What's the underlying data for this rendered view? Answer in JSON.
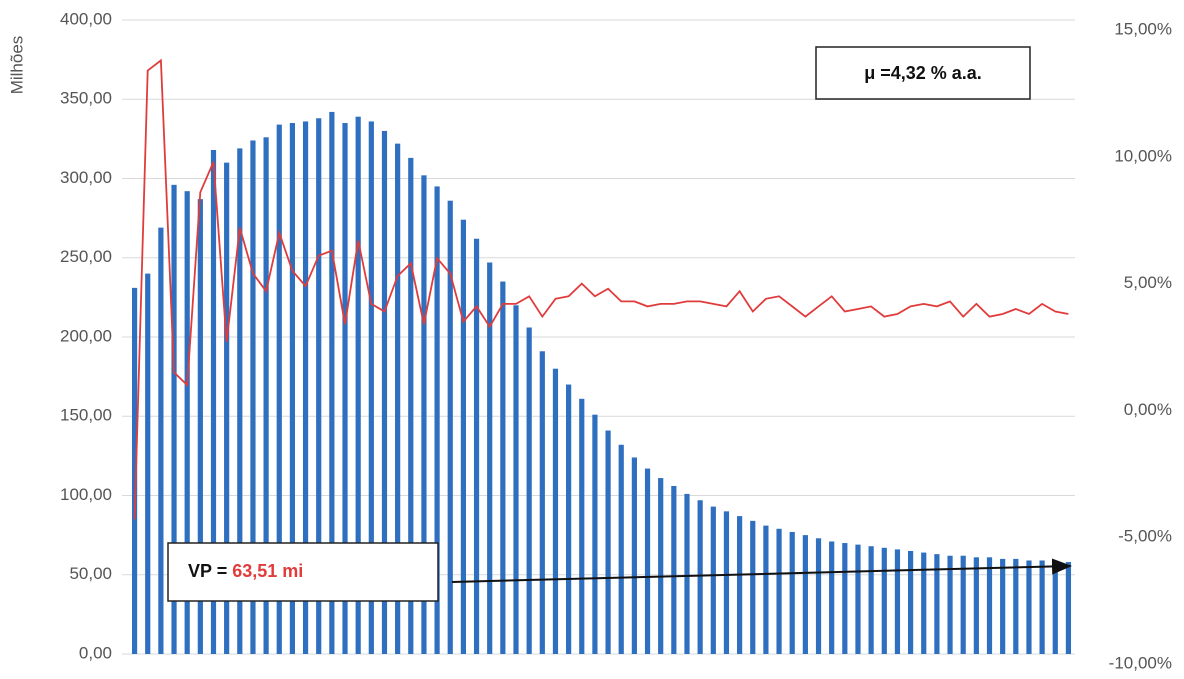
{
  "chart_data": {
    "type": "bar_line",
    "y_label": "Milhões",
    "ylim": [
      0,
      400
    ],
    "yticks": [
      {
        "value": 0,
        "label": "0,00"
      },
      {
        "value": 50,
        "label": "50,00"
      },
      {
        "value": 100,
        "label": "100,00"
      },
      {
        "value": 150,
        "label": "150,00"
      },
      {
        "value": 200,
        "label": "200,00"
      },
      {
        "value": 250,
        "label": "250,00"
      },
      {
        "value": 300,
        "label": "300,00"
      },
      {
        "value": 350,
        "label": "350,00"
      },
      {
        "value": 400,
        "label": "400,00"
      }
    ],
    "y2lim": [
      -10,
      15
    ],
    "y2ticks": [
      {
        "value": -10,
        "label": "-10,00%"
      },
      {
        "value": -5,
        "label": "-5,00%"
      },
      {
        "value": 0,
        "label": "0,00%"
      },
      {
        "value": 5,
        "label": "5,00%"
      },
      {
        "value": 10,
        "label": "10,00%"
      },
      {
        "value": 15,
        "label": "15,00%"
      }
    ],
    "grid": true,
    "series": [
      {
        "type": "bar",
        "color": "#2f6fbf",
        "values": [
          231,
          240,
          269,
          296,
          292,
          287,
          318,
          310,
          319,
          324,
          326,
          334,
          335,
          336,
          338,
          342,
          335,
          339,
          336,
          330,
          322,
          313,
          302,
          295,
          286,
          274,
          262,
          247,
          235,
          220,
          206,
          191,
          180,
          170,
          161,
          151,
          141,
          132,
          124,
          117,
          111,
          106,
          101,
          97,
          93,
          90,
          87,
          84,
          81,
          79,
          77,
          75,
          73,
          71,
          70,
          69,
          68,
          67,
          66,
          65,
          64,
          63,
          62,
          62,
          61,
          61,
          60,
          60,
          59,
          59,
          58,
          58
        ]
      },
      {
        "type": "line",
        "axis": "y2",
        "color": "#e03c3c",
        "values": [
          -4.3,
          13.4,
          13.8,
          1.5,
          1.0,
          8.6,
          9.8,
          2.7,
          7.2,
          5.4,
          4.7,
          7.0,
          5.5,
          4.9,
          6.1,
          6.3,
          3.4,
          6.7,
          4.2,
          3.9,
          5.3,
          5.8,
          3.4,
          6.0,
          5.4,
          3.5,
          4.1,
          3.3,
          4.2,
          4.2,
          4.5,
          3.7,
          4.4,
          4.5,
          5.0,
          4.5,
          4.8,
          4.3,
          4.3,
          4.1,
          4.2,
          4.2,
          4.3,
          4.3,
          4.2,
          4.1,
          4.7,
          3.9,
          4.4,
          4.5,
          4.1,
          3.7,
          4.1,
          4.5,
          3.9,
          4.0,
          4.1,
          3.7,
          3.8,
          4.1,
          4.2,
          4.1,
          4.3,
          3.7,
          4.2,
          3.7,
          3.8,
          4.0,
          3.8,
          4.2,
          3.9,
          3.8
        ]
      }
    ],
    "annotations": {
      "mu": "μ =4,32 % a.a.",
      "vp_label": "VP =",
      "vp_value": "63,51 mi"
    }
  }
}
